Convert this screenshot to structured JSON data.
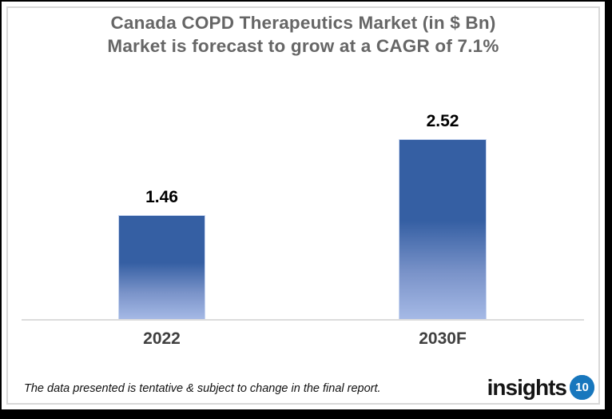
{
  "title": {
    "line1": "Canada COPD Therapeutics Market (in $ Bn)",
    "line2": "Market is forecast to grow at a CAGR of 7.1%"
  },
  "chart_data": {
    "type": "bar",
    "categories": [
      "2022",
      "2030F"
    ],
    "values": [
      1.46,
      2.52
    ],
    "value_labels": [
      "1.46",
      "2.52"
    ],
    "title": "Canada COPD Therapeutics Market (in $ Bn)",
    "subtitle": "Market is forecast to grow at a CAGR of 7.1%",
    "xlabel": "",
    "ylabel": "",
    "ylim": [
      0,
      2.8
    ],
    "grid": false,
    "legend": false,
    "bar_gradient_top": "#355fa3",
    "bar_gradient_bottom": "#a6bae6",
    "bar_edge_color": "#c8d6f0",
    "axis_line_color": "#dcdcdc",
    "value_label_color": "#000000",
    "category_label_color": "#3f3f3f",
    "title_color": "#666666"
  },
  "footer": {
    "disclaimer": "The data presented is tentative & subject to change in the final report.",
    "logo_text": "insights",
    "logo_badge": "10",
    "logo_badge_color": "#1877bd"
  }
}
